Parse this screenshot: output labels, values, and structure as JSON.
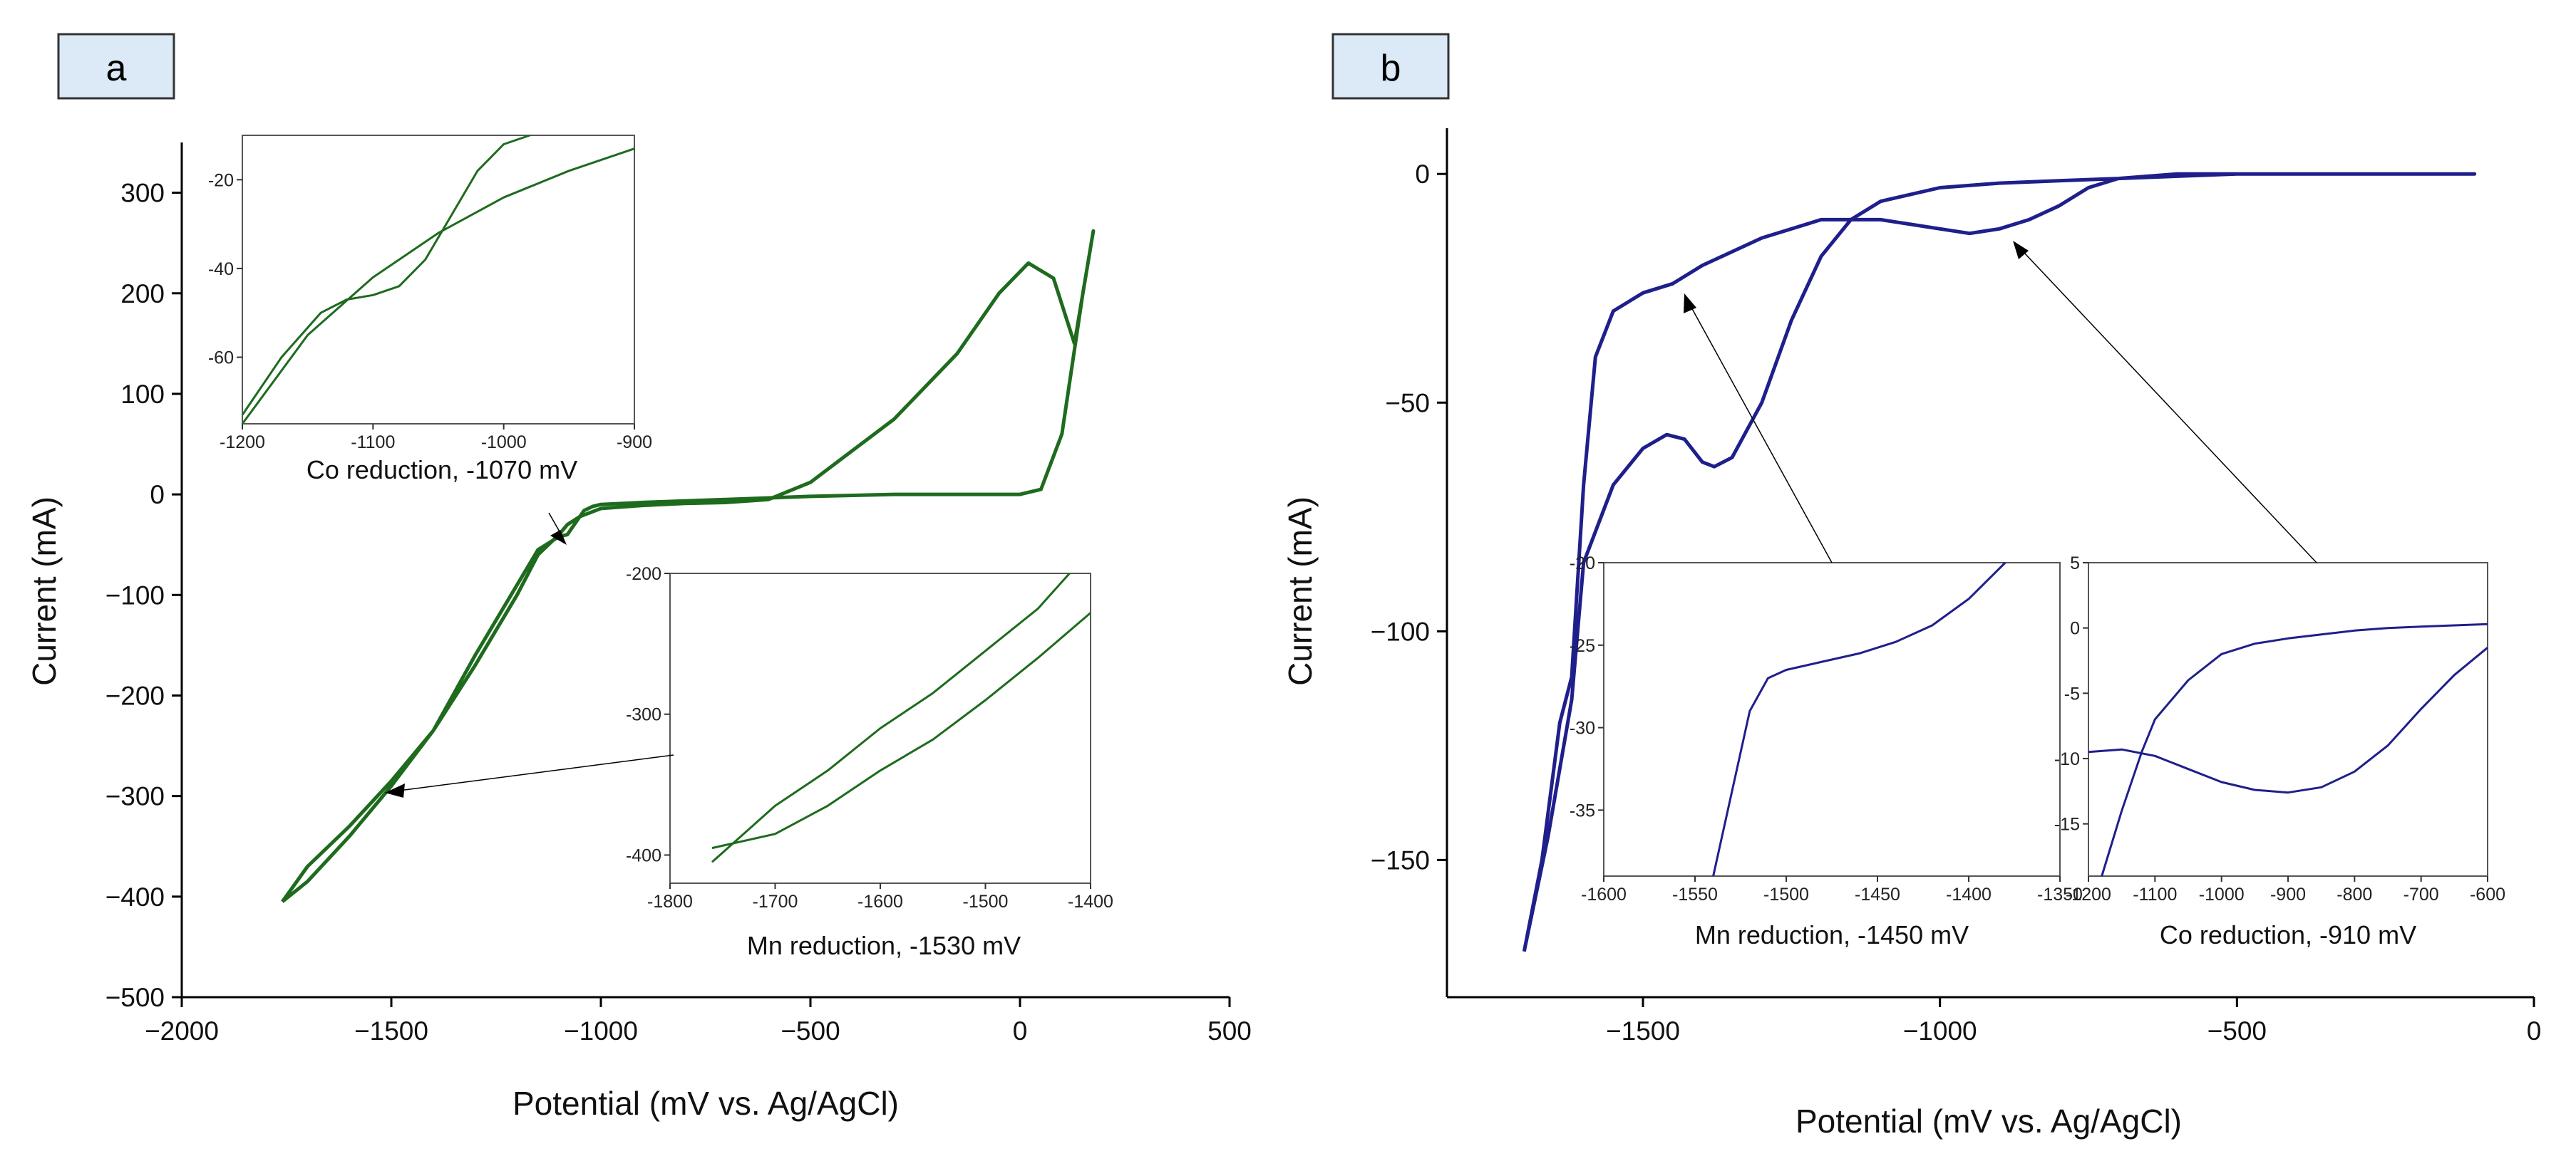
{
  "figure": {
    "panels": [
      {
        "label": "a",
        "color": "#1e6b1e",
        "chart_data": {
          "type": "line",
          "xlabel": "Potential (mV vs. Ag/AgCl)",
          "ylabel": "Current (mA)",
          "xlim": [
            -2000,
            500
          ],
          "ylim": [
            -500,
            350
          ],
          "xticks": [
            -2000,
            -1500,
            -1000,
            -500,
            0,
            500
          ],
          "yticks": [
            -500,
            -400,
            -300,
            -200,
            -100,
            0,
            100,
            200,
            300
          ],
          "series": [
            {
              "x": [
                -1760,
                -1700,
                -1600,
                -1500,
                -1400,
                -1300,
                -1200,
                -1150,
                -1100,
                -1080,
                -1060,
                -1040,
                -1020,
                -1000,
                -900,
                -700,
                -500,
                -300,
                -200,
                -100,
                0,
                50,
                100,
                150,
                175,
                130,
                80,
                20,
                -50,
                -150,
                -300,
                -500,
                -600,
                -700,
                -800,
                -900,
                -1000,
                -1050,
                -1080,
                -1100,
                -1150,
                -1200,
                -1300,
                -1400,
                -1500,
                -1600,
                -1700,
                -1760
              ],
              "y": [
                -405,
                -370,
                -330,
                -285,
                -235,
                -160,
                -90,
                -55,
                -42,
                -40,
                -28,
                -16,
                -12,
                -10,
                -8,
                -5,
                -2,
                0,
                0,
                0,
                0,
                5,
                60,
                200,
                262,
                150,
                215,
                230,
                200,
                140,
                75,
                12,
                -5,
                -8,
                -9,
                -11,
                -14,
                -22,
                -30,
                -40,
                -60,
                -100,
                -170,
                -235,
                -290,
                -340,
                -385,
                -405
              ]
            }
          ]
        },
        "insets": [
          {
            "caption": "Co reduction, -1070 mV",
            "xlim": [
              -1200,
              -900
            ],
            "ylim": [
              -75,
              -10
            ],
            "xticks": [
              -1200,
              -1100,
              -1000,
              -900
            ],
            "yticks": [
              -60,
              -40,
              -20
            ],
            "series": [
              {
                "x": [
                  -1200,
                  -1170,
                  -1140,
                  -1120,
                  -1100,
                  -1080,
                  -1060,
                  -1040,
                  -1020,
                  -1000,
                  -980
                ],
                "y": [
                  -73,
                  -60,
                  -50,
                  -47,
                  -46,
                  -44,
                  -38,
                  -28,
                  -18,
                  -12,
                  -6
                ]
              },
              {
                "x": [
                  -1200,
                  -1150,
                  -1100,
                  -1050,
                  -1000,
                  -950,
                  -900
                ],
                "y": [
                  -75,
                  -55,
                  -42,
                  -32,
                  -24,
                  -18,
                  -13
                ]
              }
            ]
          },
          {
            "caption": "Mn reduction, -1530 mV",
            "xlim": [
              -1800,
              -1400
            ],
            "ylim": [
              -420,
              -200
            ],
            "xticks": [
              -1800,
              -1700,
              -1600,
              -1500,
              -1400
            ],
            "yticks": [
              -400,
              -300,
              -200
            ],
            "series": [
              {
                "x": [
                  -1760,
                  -1700,
                  -1650,
                  -1600,
                  -1550,
                  -1500,
                  -1450,
                  -1420
                ],
                "y": [
                  -405,
                  -365,
                  -340,
                  -310,
                  -285,
                  -255,
                  -225,
                  -200
                ]
              },
              {
                "x": [
                  -1760,
                  -1700,
                  -1650,
                  -1600,
                  -1550,
                  -1500,
                  -1450,
                  -1400
                ],
                "y": [
                  -395,
                  -385,
                  -365,
                  -340,
                  -318,
                  -290,
                  -260,
                  -228
                ]
              }
            ]
          }
        ]
      },
      {
        "label": "b",
        "color": "#1f1f8c",
        "chart_data": {
          "type": "line",
          "xlabel": "Potential (mV vs. Ag/AgCl)",
          "ylabel": "Current (mA)",
          "xlim": [
            -1830,
            0
          ],
          "ylim": [
            -180,
            10
          ],
          "xticks": [
            -1500,
            -1000,
            -500,
            0
          ],
          "yticks": [
            -150,
            -100,
            -50,
            0
          ],
          "series": [
            {
              "x": [
                -1700,
                -1670,
                -1640,
                -1620,
                -1600,
                -1580,
                -1550,
                -1500,
                -1450,
                -1400,
                -1300,
                -1200,
                -1100,
                -1000,
                -950,
                -900,
                -850,
                -800,
                -750,
                -700,
                -600,
                -500,
                -300,
                -100,
                -100,
                -300,
                -500,
                -600,
                -700,
                -800,
                -900,
                -1000,
                -1100,
                -1150,
                -1200,
                -1250,
                -1300,
                -1350,
                -1380,
                -1400,
                -1430,
                -1460,
                -1500,
                -1550,
                -1600,
                -1620,
                -1660,
                -1700
              ],
              "y": [
                -170,
                -150,
                -120,
                -110,
                -68,
                -40,
                -30,
                -26,
                -24,
                -20,
                -14,
                -10,
                -10,
                -12,
                -13,
                -12,
                -10,
                -7,
                -3,
                -1,
                0,
                0,
                0,
                0,
                0,
                0,
                0,
                -0.5,
                -1,
                -1.5,
                -2,
                -3,
                -6,
                -10,
                -18,
                -32,
                -50,
                -62,
                -64,
                -63,
                -58,
                -57,
                -60,
                -68,
                -85,
                -115,
                -145,
                -170
              ]
            }
          ]
        },
        "insets": [
          {
            "caption": "Mn reduction, -1450 mV",
            "xlim": [
              -1600,
              -1350
            ],
            "ylim": [
              -39,
              -20
            ],
            "xticks": [
              -1600,
              -1550,
              -1500,
              -1450,
              -1400,
              -1350
            ],
            "yticks": [
              -35,
              -30,
              -25,
              -20
            ],
            "series": [
              {
                "x": [
                  -1540,
                  -1530,
                  -1520,
                  -1510,
                  -1500,
                  -1480,
                  -1460,
                  -1440,
                  -1420,
                  -1400,
                  -1380
                ],
                "y": [
                  -39,
                  -34,
                  -29,
                  -27,
                  -26.5,
                  -26,
                  -25.5,
                  -24.8,
                  -23.8,
                  -22.2,
                  -20
                ]
              }
            ]
          },
          {
            "caption": "Co reduction, -910 mV",
            "xlim": [
              -1200,
              -600
            ],
            "ylim": [
              -19,
              5
            ],
            "xticks": [
              -1200,
              -1100,
              -1000,
              -900,
              -800,
              -700,
              -600
            ],
            "yticks": [
              -15,
              -10,
              -5,
              0,
              5
            ],
            "series": [
              {
                "x": [
                  -1200,
                  -1150,
                  -1100,
                  -1050,
                  -1000,
                  -950,
                  -900,
                  -850,
                  -800,
                  -750,
                  -700,
                  -650,
                  -600
                ],
                "y": [
                  -9.5,
                  -9.3,
                  -9.8,
                  -10.8,
                  -11.8,
                  -12.4,
                  -12.6,
                  -12.2,
                  -11.0,
                  -9.0,
                  -6.2,
                  -3.6,
                  -1.5
                ]
              },
              {
                "x": [
                  -1180,
                  -1150,
                  -1120,
                  -1100,
                  -1050,
                  -1000,
                  -950,
                  -900,
                  -850,
                  -800,
                  -750,
                  -700,
                  -650,
                  -600
                ],
                "y": [
                  -19,
                  -14,
                  -9.5,
                  -7,
                  -4,
                  -2,
                  -1.2,
                  -0.8,
                  -0.5,
                  -0.2,
                  0,
                  0.1,
                  0.2,
                  0.3
                ]
              }
            ]
          }
        ]
      }
    ]
  }
}
